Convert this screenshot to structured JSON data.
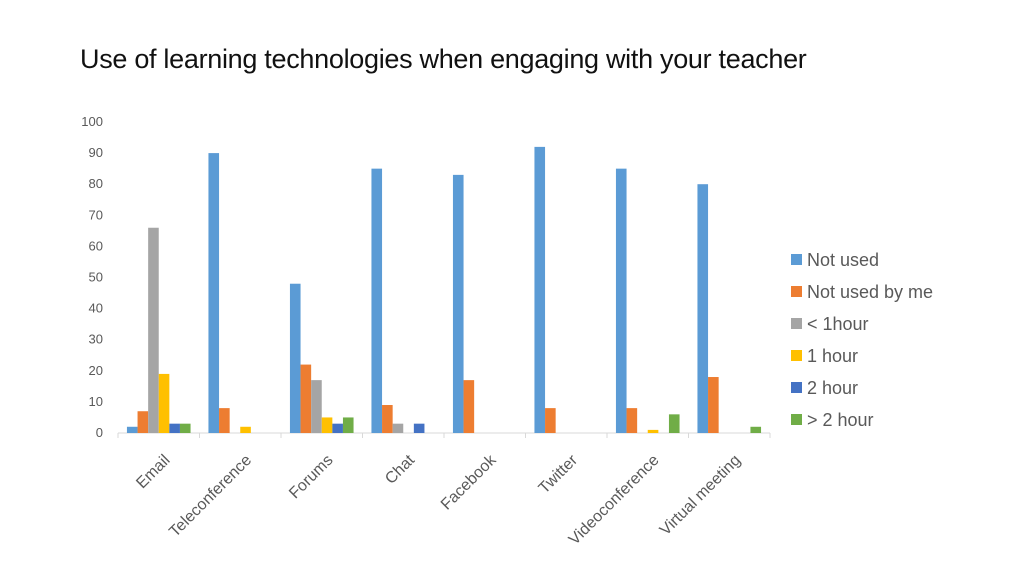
{
  "slide": {
    "title": "Use of learning technologies when engaging with your teacher"
  },
  "chart_data": {
    "type": "bar",
    "title": "",
    "xlabel": "",
    "ylabel": "",
    "ylim": [
      0,
      100
    ],
    "yticks": [
      0,
      10,
      20,
      30,
      40,
      50,
      60,
      70,
      80,
      90,
      100
    ],
    "grid": false,
    "legend_position": "right",
    "categories": [
      "Email",
      "Teleconference",
      "Forums",
      "Chat",
      "Facebook",
      "Twitter",
      "Videoconference",
      "Virtual meeting"
    ],
    "series": [
      {
        "name": "Not used",
        "color": "#5b9bd5",
        "values": [
          2,
          90,
          48,
          85,
          83,
          92,
          85,
          80
        ]
      },
      {
        "name": "Not used by me",
        "color": "#ed7d31",
        "values": [
          7,
          8,
          22,
          9,
          17,
          8,
          8,
          18
        ]
      },
      {
        "name": "< 1hour",
        "color": "#a5a5a5",
        "values": [
          66,
          0,
          17,
          3,
          0,
          0,
          0,
          0
        ]
      },
      {
        "name": "1 hour",
        "color": "#ffc000",
        "values": [
          19,
          2,
          5,
          0,
          0,
          0,
          1,
          0
        ]
      },
      {
        "name": "2 hour",
        "color": "#4472c4",
        "values": [
          3,
          0,
          3,
          3,
          0,
          0,
          0,
          0
        ]
      },
      {
        "name": "> 2 hour",
        "color": "#70ad47",
        "values": [
          3,
          0,
          5,
          0,
          0,
          0,
          6,
          2
        ]
      }
    ]
  }
}
